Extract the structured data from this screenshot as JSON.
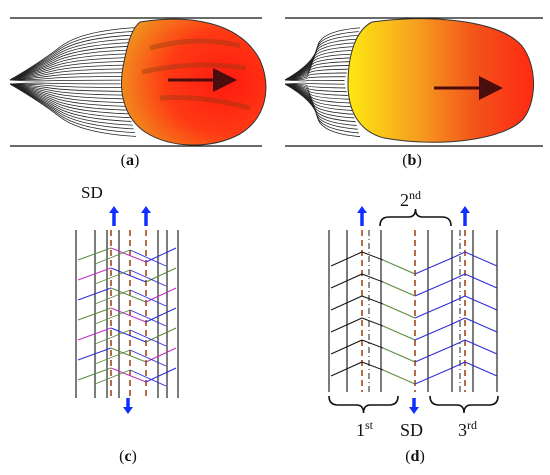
{
  "colors": {
    "pool_red": "#ff2a12",
    "pool_orange": "#f38a1c",
    "pool_yellow": "#ffdd10",
    "arrow_dark": "#5a0d0d",
    "arrow_blue": "#1030ff",
    "dash_brown": "#a04a1c",
    "line_black": "#111111",
    "grain_green": "#5a8a3a",
    "grain_blue": "#2b2bd6",
    "grain_magenta": "#c02ec0",
    "dashdot_black": "#222222"
  },
  "panels": [
    {
      "id": "a",
      "label": "a",
      "kind": "melt-pool-round"
    },
    {
      "id": "b",
      "label": "b",
      "kind": "melt-pool-teardrop"
    },
    {
      "id": "c",
      "label": "c",
      "kind": "grain-pattern-fine",
      "sd_label": "SD"
    },
    {
      "id": "d",
      "label": "d",
      "kind": "grain-pattern-tracks",
      "sd_label": "SD",
      "tracks": [
        {
          "label": "1",
          "suffix": "st"
        },
        {
          "label": "2",
          "suffix": "nd"
        },
        {
          "label": "3",
          "suffix": "rd"
        }
      ]
    }
  ]
}
